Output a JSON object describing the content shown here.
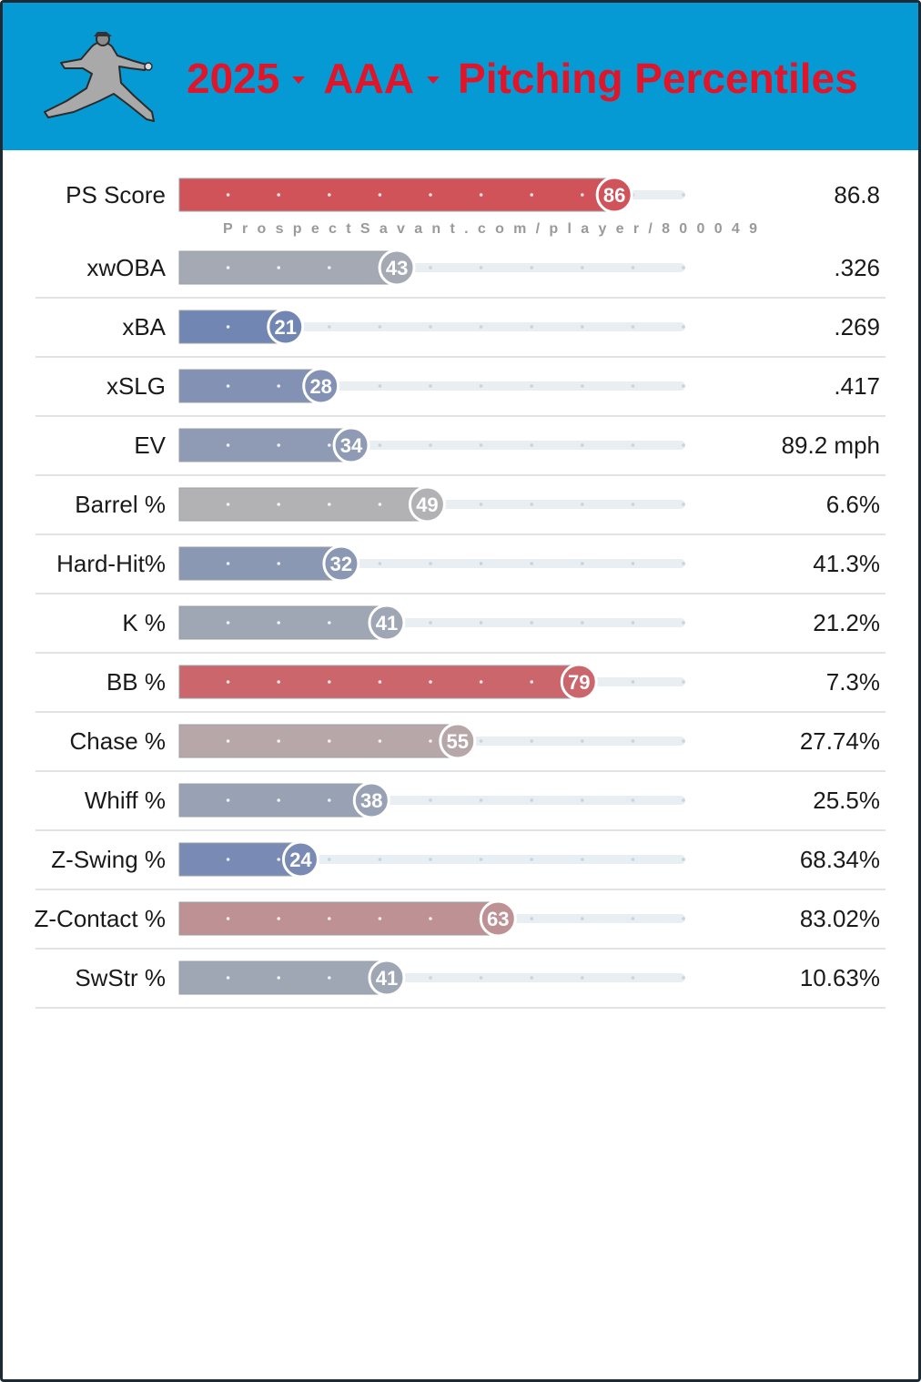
{
  "header": {
    "year": "2025",
    "level": "AAA",
    "title": "Pitching Percentiles"
  },
  "watermark": "ProspectSavant.com/player/800049",
  "colors": {
    "header_bg": "#069ad4",
    "title": "#e0152a",
    "track": "#e8eef1"
  },
  "chart_data": {
    "type": "bar",
    "orientation": "horizontal",
    "title": "2025 AAA Pitching Percentiles",
    "xlim": [
      0,
      100
    ],
    "rows": [
      {
        "label": "PS Score",
        "percentile": 86,
        "value": "86.8"
      },
      {
        "label": "xwOBA",
        "percentile": 43,
        "value": ".326"
      },
      {
        "label": "xBA",
        "percentile": 21,
        "value": ".269"
      },
      {
        "label": "xSLG",
        "percentile": 28,
        "value": ".417"
      },
      {
        "label": "EV",
        "percentile": 34,
        "value": "89.2 mph"
      },
      {
        "label": "Barrel %",
        "percentile": 49,
        "value": "6.6%"
      },
      {
        "label": "Hard-Hit%",
        "percentile": 32,
        "value": "41.3%"
      },
      {
        "label": "K %",
        "percentile": 41,
        "value": "21.2%"
      },
      {
        "label": "BB %",
        "percentile": 79,
        "value": "7.3%"
      },
      {
        "label": "Chase %",
        "percentile": 55,
        "value": "27.74%"
      },
      {
        "label": "Whiff %",
        "percentile": 38,
        "value": "25.5%"
      },
      {
        "label": "Z-Swing %",
        "percentile": 24,
        "value": "68.34%"
      },
      {
        "label": "Z-Contact %",
        "percentile": 63,
        "value": "83.02%"
      },
      {
        "label": "SwStr %",
        "percentile": 41,
        "value": "10.63%"
      }
    ]
  }
}
